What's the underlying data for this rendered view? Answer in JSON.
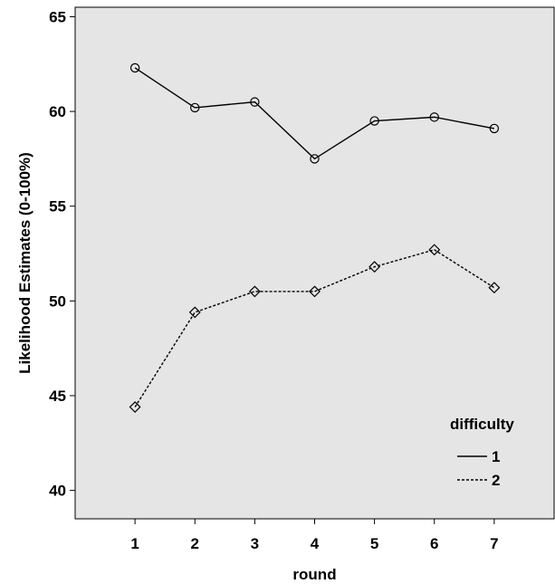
{
  "chart_data": {
    "type": "line",
    "title": "",
    "xlabel": "round",
    "ylabel": "Likelihood Estimates (0-100%)",
    "x": [
      1,
      2,
      3,
      4,
      5,
      6,
      7
    ],
    "xlim": [
      0,
      8
    ],
    "ylim": [
      38.5,
      65.5
    ],
    "yticks": [
      40,
      45,
      50,
      55,
      60,
      65
    ],
    "xticks": [
      1,
      2,
      3,
      4,
      5,
      6,
      7
    ],
    "grid": false,
    "background_color": "#e5e5e5",
    "legend": {
      "title": "difficulty",
      "placement": "bottom-right"
    },
    "series": [
      {
        "name": "1",
        "values": [
          62.3,
          60.2,
          60.5,
          57.5,
          59.5,
          59.7,
          59.1
        ],
        "line_style": "solid",
        "marker": "circle",
        "color": "#000000"
      },
      {
        "name": "2",
        "values": [
          44.4,
          49.4,
          50.5,
          50.5,
          51.8,
          52.7,
          50.7
        ],
        "line_style": "dashed",
        "marker": "diamond",
        "color": "#000000"
      }
    ]
  }
}
